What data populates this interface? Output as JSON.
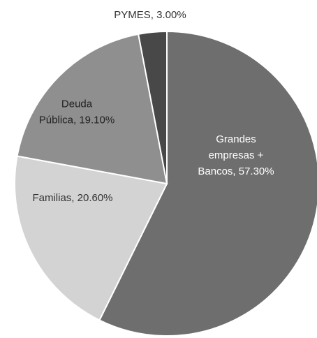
{
  "chart_data": {
    "type": "pie",
    "start_angle_deg": 0,
    "direction": "clockwise",
    "slices": [
      {
        "label": "Grandes empresas + Bancos",
        "value": 57.3,
        "display": [
          "Grandes",
          "empresas +",
          "Bancos, 57.30%"
        ],
        "color": "#6e6e6e",
        "text_color": "#ffffff"
      },
      {
        "label": "Familias",
        "value": 20.6,
        "display": [
          "Familias, 20.60%"
        ],
        "color": "#d3d3d3",
        "text_color": "#333333"
      },
      {
        "label": "Deuda Pública",
        "value": 19.1,
        "display": [
          "Deuda",
          "Pública, 19.10%"
        ],
        "color": "#8f8f8f",
        "text_color": "#222222"
      },
      {
        "label": "PYMES",
        "value": 3.0,
        "display": [
          "PYMES, 3.00%"
        ],
        "color": "#484848",
        "text_color": "#333333"
      }
    ],
    "legend": "none"
  }
}
